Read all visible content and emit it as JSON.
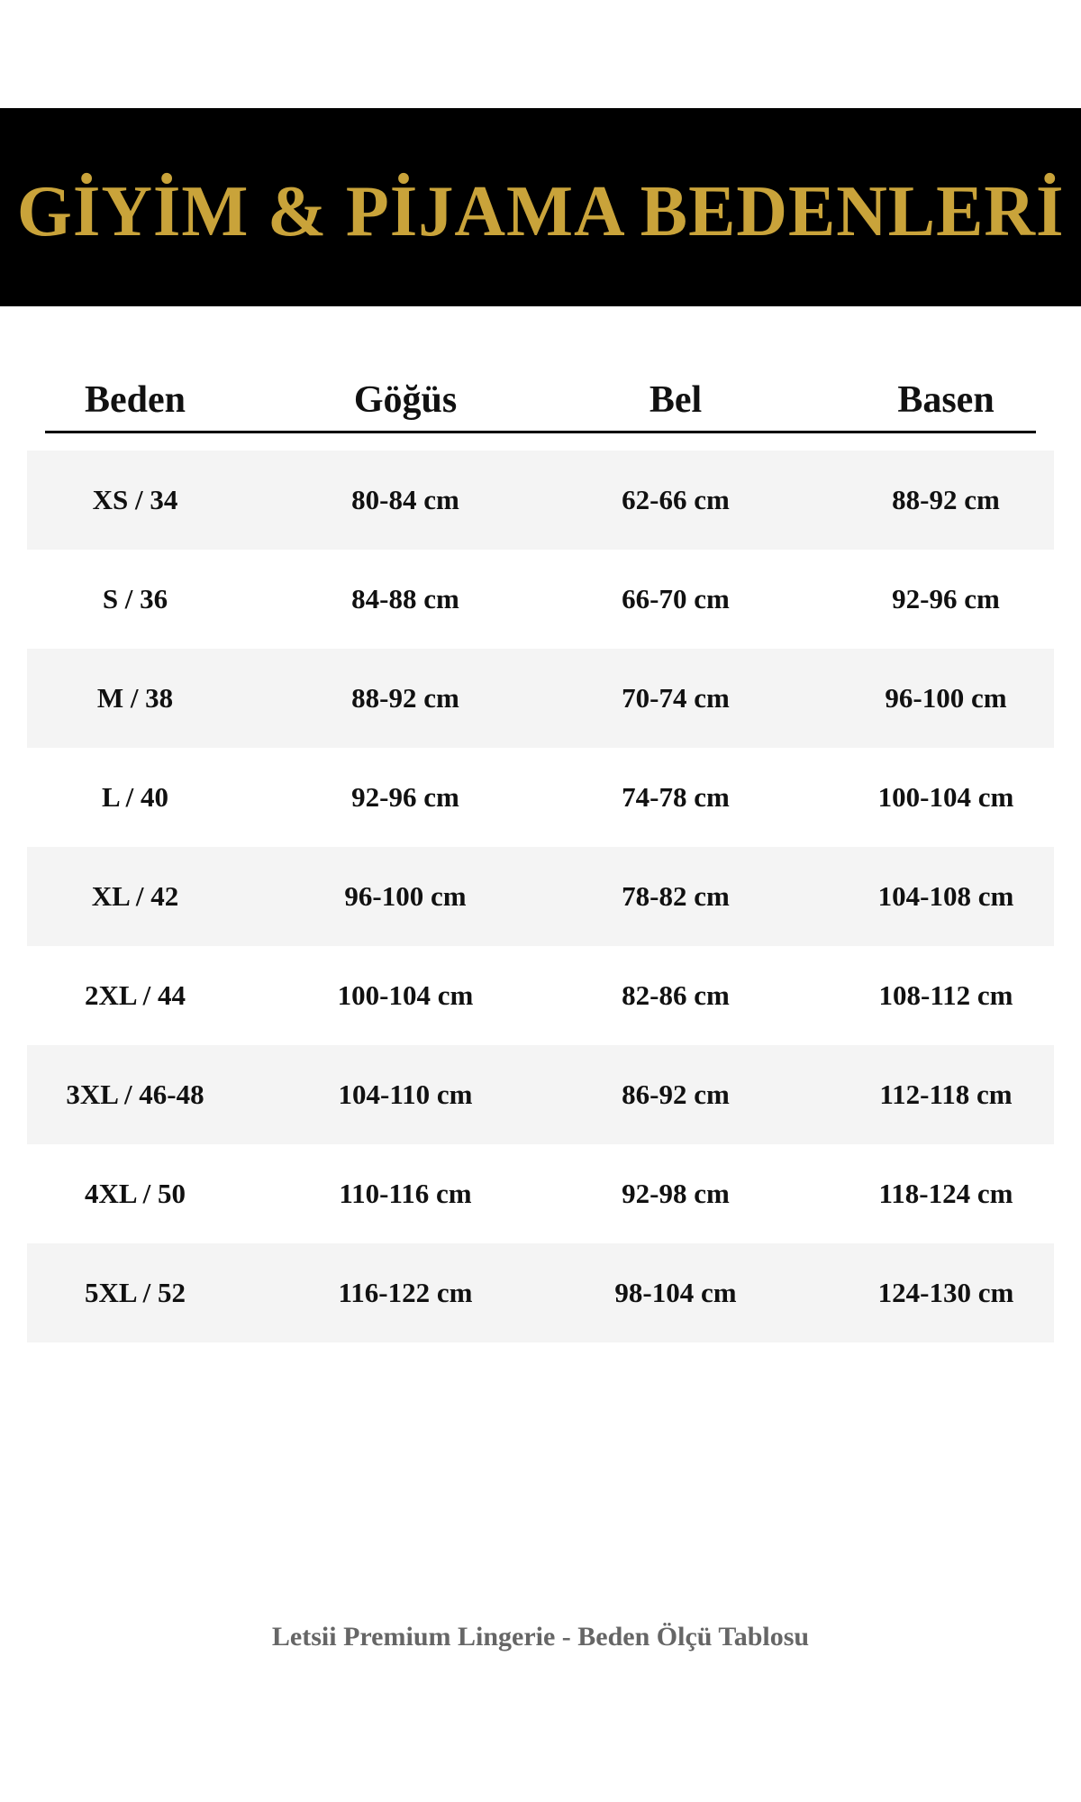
{
  "title": "GİYİM & PİJAMA BEDENLERİ",
  "colors": {
    "accent": "#c9a33a",
    "banner": "#000000",
    "row_alt": "#f4f4f4",
    "footer": "#666666"
  },
  "table": {
    "headers": [
      "Beden",
      "Göğüs",
      "Bel",
      "Basen"
    ],
    "rows": [
      [
        "XS / 34",
        "80-84 cm",
        "62-66 cm",
        "88-92 cm"
      ],
      [
        "S / 36",
        "84-88 cm",
        "66-70 cm",
        "92-96 cm"
      ],
      [
        "M / 38",
        "88-92 cm",
        "70-74 cm",
        "96-100 cm"
      ],
      [
        "L / 40",
        "92-96 cm",
        "74-78 cm",
        "100-104 cm"
      ],
      [
        "XL / 42",
        "96-100 cm",
        "78-82 cm",
        "104-108 cm"
      ],
      [
        "2XL / 44",
        "100-104 cm",
        "82-86 cm",
        "108-112 cm"
      ],
      [
        "3XL / 46-48",
        "104-110 cm",
        "86-92 cm",
        "112-118 cm"
      ],
      [
        "4XL / 50",
        "110-116 cm",
        "92-98 cm",
        "118-124 cm"
      ],
      [
        "5XL / 52",
        "116-122 cm",
        "98-104 cm",
        "124-130 cm"
      ]
    ]
  },
  "footer": "Letsii Premium Lingerie - Beden Ölçü Tablosu"
}
